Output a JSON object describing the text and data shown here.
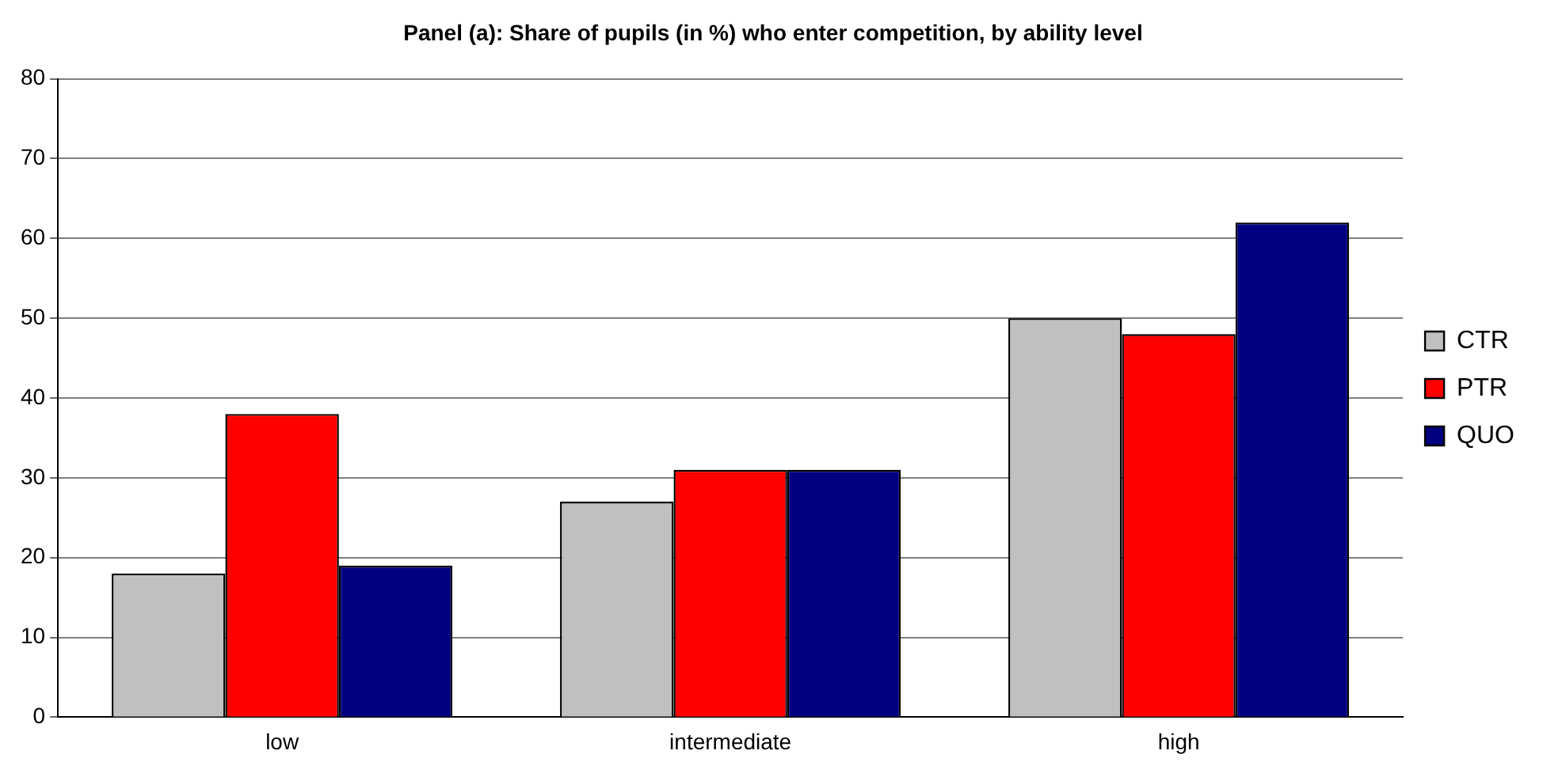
{
  "chart_data": {
    "type": "bar",
    "title": "Panel (a): Share of pupils (in %) who enter competition, by ability level",
    "categories": [
      "low",
      "intermediate",
      "high"
    ],
    "series": [
      {
        "name": "CTR",
        "color": "#c0c0c0",
        "values": [
          18,
          27,
          50
        ]
      },
      {
        "name": "PTR",
        "color": "#ff0000",
        "values": [
          38,
          31,
          48
        ]
      },
      {
        "name": "QUO",
        "color": "#000080",
        "values": [
          19,
          31,
          62
        ]
      }
    ],
    "ylim": [
      0,
      80
    ],
    "yticks": [
      0,
      10,
      20,
      30,
      40,
      50,
      60,
      70,
      80
    ],
    "grid": "y",
    "legend": "right"
  }
}
